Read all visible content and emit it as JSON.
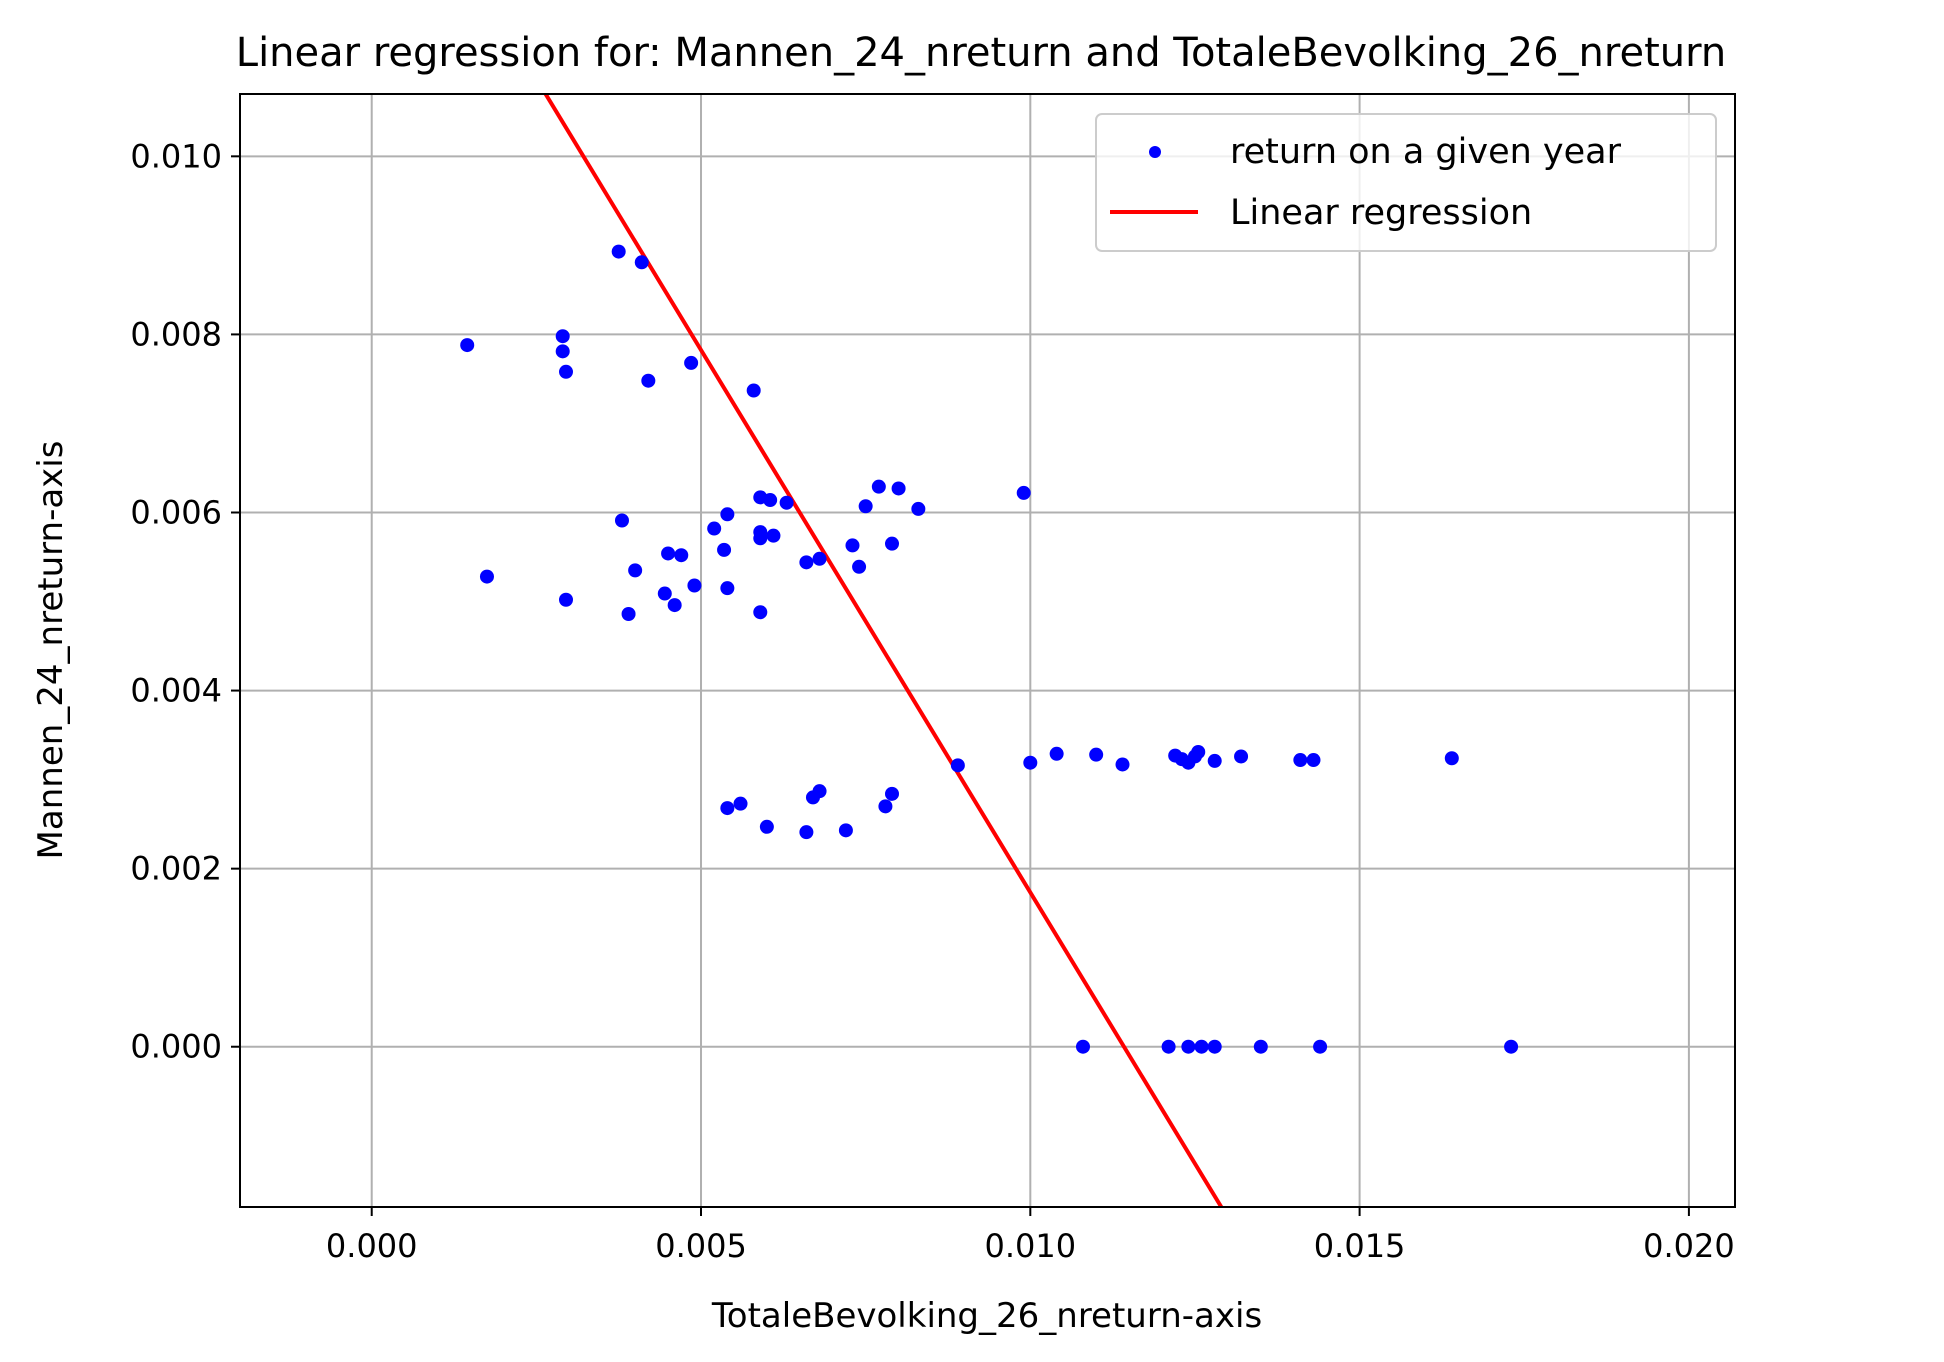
{
  "chart_data": {
    "type": "scatter",
    "title": "Linear regression for: Mannen_24_nreturn and TotaleBevolking_26_nreturn",
    "xlabel": "TotaleBevolking_26_nreturn-axis",
    "ylabel": "Mannen_24_nreturn-axis",
    "xlim": [
      -0.002,
      0.0207
    ],
    "ylim": [
      -0.0018,
      0.0107
    ],
    "xticks": [
      0.0,
      0.005,
      0.01,
      0.015,
      0.02
    ],
    "xtick_labels": [
      "0.000",
      "0.005",
      "0.010",
      "0.015",
      "0.020"
    ],
    "yticks": [
      0.0,
      0.002,
      0.004,
      0.006,
      0.008,
      0.01
    ],
    "ytick_labels": [
      "0.000",
      "0.002",
      "0.004",
      "0.006",
      "0.008",
      "0.010"
    ],
    "grid": true,
    "legend_position": "top-right",
    "colors": {
      "points": "#0000ff",
      "line": "#ff0000",
      "grid": "#b0b0b0"
    },
    "series": [
      {
        "name": "return on a given year",
        "kind": "scatter",
        "points": [
          [
            0.00145,
            0.00788
          ],
          [
            0.00175,
            0.00528
          ],
          [
            0.0029,
            0.00798
          ],
          [
            0.0029,
            0.00781
          ],
          [
            0.00295,
            0.00758
          ],
          [
            0.00295,
            0.00502
          ],
          [
            0.00375,
            0.00893
          ],
          [
            0.0041,
            0.00881
          ],
          [
            0.0038,
            0.00591
          ],
          [
            0.0039,
            0.00486
          ],
          [
            0.004,
            0.00535
          ],
          [
            0.0042,
            0.00748
          ],
          [
            0.00445,
            0.00509
          ],
          [
            0.0045,
            0.00554
          ],
          [
            0.0046,
            0.00496
          ],
          [
            0.0047,
            0.00552
          ],
          [
            0.00485,
            0.00768
          ],
          [
            0.0049,
            0.00518
          ],
          [
            0.0052,
            0.00582
          ],
          [
            0.00535,
            0.00558
          ],
          [
            0.0054,
            0.00598
          ],
          [
            0.0054,
            0.00515
          ],
          [
            0.0058,
            0.00737
          ],
          [
            0.0059,
            0.00617
          ],
          [
            0.00605,
            0.00614
          ],
          [
            0.0063,
            0.00611
          ],
          [
            0.0059,
            0.00578
          ],
          [
            0.0059,
            0.00571
          ],
          [
            0.0061,
            0.00574
          ],
          [
            0.0059,
            0.00488
          ],
          [
            0.0066,
            0.00544
          ],
          [
            0.0068,
            0.00548
          ],
          [
            0.0073,
            0.00563
          ],
          [
            0.0074,
            0.00539
          ],
          [
            0.0075,
            0.00607
          ],
          [
            0.0077,
            0.00629
          ],
          [
            0.008,
            0.00627
          ],
          [
            0.0083,
            0.00604
          ],
          [
            0.0079,
            0.00565
          ],
          [
            0.0099,
            0.00622
          ],
          [
            0.0054,
            0.00268
          ],
          [
            0.0056,
            0.00273
          ],
          [
            0.006,
            0.00247
          ],
          [
            0.0066,
            0.00241
          ],
          [
            0.0067,
            0.0028
          ],
          [
            0.0068,
            0.00287
          ],
          [
            0.0072,
            0.00243
          ],
          [
            0.0078,
            0.0027
          ],
          [
            0.0079,
            0.00284
          ],
          [
            0.0089,
            0.00316
          ],
          [
            0.01,
            0.00319
          ],
          [
            0.0104,
            0.00329
          ],
          [
            0.011,
            0.00328
          ],
          [
            0.0114,
            0.00317
          ],
          [
            0.0122,
            0.00327
          ],
          [
            0.0123,
            0.00323
          ],
          [
            0.0124,
            0.00319
          ],
          [
            0.0125,
            0.00326
          ],
          [
            0.01255,
            0.00331
          ],
          [
            0.0128,
            0.00321
          ],
          [
            0.0132,
            0.00326
          ],
          [
            0.0141,
            0.00322
          ],
          [
            0.0143,
            0.00322
          ],
          [
            0.0164,
            0.00324
          ],
          [
            0.0108,
            0.0
          ],
          [
            0.0121,
            0.0
          ],
          [
            0.0124,
            0.0
          ],
          [
            0.0126,
            0.0
          ],
          [
            0.0128,
            0.0
          ],
          [
            0.0135,
            0.0
          ],
          [
            0.0144,
            0.0
          ],
          [
            0.0173,
            0.0
          ]
        ]
      },
      {
        "name": "Linear regression",
        "kind": "line",
        "points": [
          [
            0.00264,
            0.0107
          ],
          [
            0.0129,
            -0.0018
          ]
        ]
      }
    ]
  }
}
